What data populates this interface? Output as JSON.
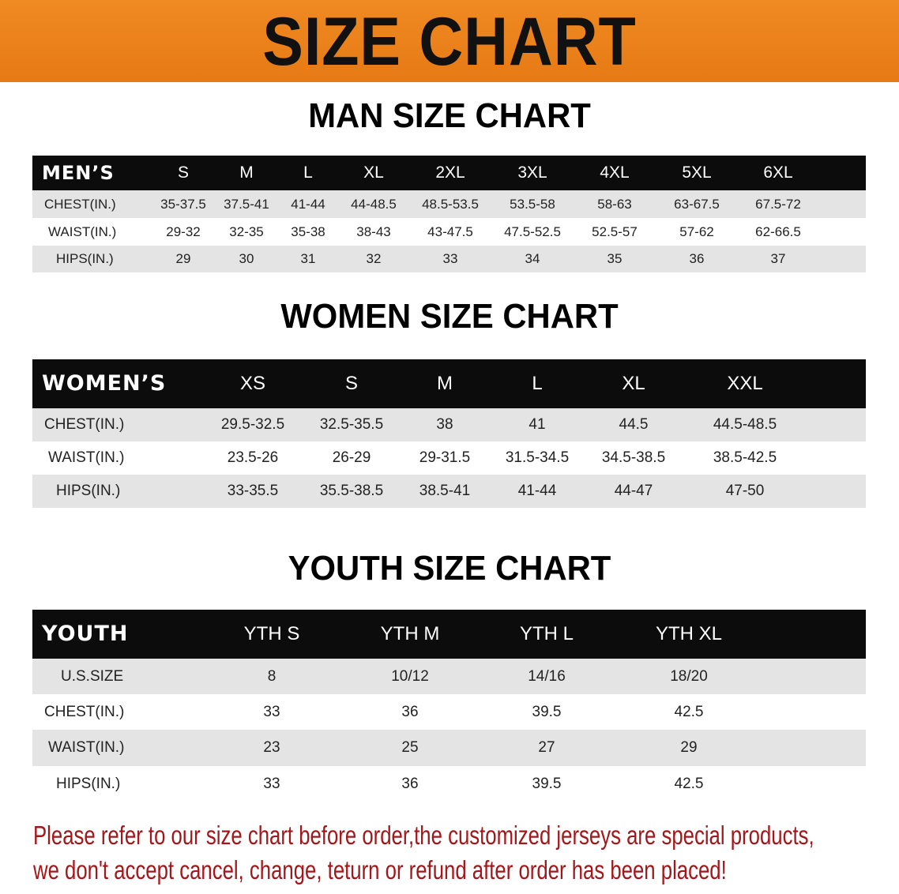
{
  "banner": {
    "title": "SIZE CHART",
    "color": "#ec821c"
  },
  "men": {
    "heading": "MAN SIZE CHART",
    "header_label": "MEN’S",
    "sizes": [
      "S",
      "M",
      "L",
      "XL",
      "2XL",
      "3XL",
      "4XL",
      "5XL",
      "6XL"
    ],
    "rows": [
      {
        "label": "CHEST(IN.)",
        "values": [
          "35-37.5",
          "37.5-41",
          "41-44",
          "44-48.5",
          "48.5-53.5",
          "53.5-58",
          "58-63",
          "63-67.5",
          "67.5-72"
        ]
      },
      {
        "label": "WAIST(IN.)",
        "values": [
          "29-32",
          "32-35",
          "35-38",
          "38-43",
          "43-47.5",
          "47.5-52.5",
          "52.5-57",
          "57-62",
          "62-66.5"
        ]
      },
      {
        "label": "HIPS(IN.)",
        "values": [
          "29",
          "30",
          "31",
          "32",
          "33",
          "34",
          "35",
          "36",
          "37"
        ]
      }
    ]
  },
  "women": {
    "heading": "WOMEN SIZE CHART",
    "header_label": "WOMEN’S",
    "sizes": [
      "XS",
      "S",
      "M",
      "L",
      "XL",
      "XXL"
    ],
    "rows": [
      {
        "label": "CHEST(IN.)",
        "values": [
          "29.5-32.5",
          "32.5-35.5",
          "38",
          "41",
          "44.5",
          "44.5-48.5"
        ]
      },
      {
        "label": "WAIST(IN.)",
        "values": [
          "23.5-26",
          "26-29",
          "29-31.5",
          "31.5-34.5",
          "34.5-38.5",
          "38.5-42.5"
        ]
      },
      {
        "label": "HIPS(IN.)",
        "values": [
          "33-35.5",
          "35.5-38.5",
          "38.5-41",
          "41-44",
          "44-47",
          "47-50"
        ]
      }
    ]
  },
  "youth": {
    "heading": "YOUTH SIZE CHART",
    "header_label": "YOUTH",
    "sizes": [
      "YTH S",
      "YTH M",
      "YTH L",
      "YTH XL"
    ],
    "rows": [
      {
        "label": "U.S.SIZE",
        "values": [
          "8",
          "10/12",
          "14/16",
          "18/20"
        ]
      },
      {
        "label": "CHEST(IN.)",
        "values": [
          "33",
          "36",
          "39.5",
          "42.5"
        ]
      },
      {
        "label": "WAIST(IN.)",
        "values": [
          "23",
          "25",
          "27",
          "29"
        ]
      },
      {
        "label": "HIPS(IN.)",
        "values": [
          "33",
          "36",
          "39.5",
          "42.5"
        ]
      }
    ]
  },
  "note": {
    "line1": "Please refer to our size chart before order,the customized jerseys are special products,",
    "line2": "we don't accept cancel, change, teturn or refund after order has been placed!",
    "color": "#a3161a"
  }
}
